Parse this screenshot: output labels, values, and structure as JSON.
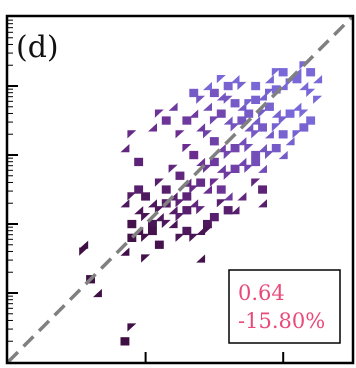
{
  "chart_data": {
    "type": "heatmap",
    "panel_label": "(d)",
    "title": "",
    "xlabel": "",
    "ylabel": "",
    "xlim": [
      0,
      1
    ],
    "ylim": [
      0,
      1
    ],
    "diagonal": {
      "style": "dashed",
      "color": "#808080",
      "from": [
        0,
        0
      ],
      "to": [
        1,
        1
      ]
    },
    "annotation": {
      "lines": [
        "0.64",
        "-15.80%"
      ],
      "color": "#e84a7a",
      "placement": "bottom-right"
    },
    "colors": {
      "low": "#3a0a3a",
      "mid": "#6b2d8f",
      "high": "#7b6fe0",
      "axis": "#000000"
    },
    "cells": [
      [
        0.6,
        0.78,
        0.8
      ],
      [
        0.62,
        0.77,
        0.8
      ],
      [
        0.64,
        0.76,
        0.8
      ],
      [
        0.66,
        0.75,
        0.85
      ],
      [
        0.68,
        0.74,
        0.85
      ],
      [
        0.7,
        0.75,
        0.9
      ],
      [
        0.72,
        0.76,
        0.9
      ],
      [
        0.74,
        0.77,
        0.9
      ],
      [
        0.76,
        0.78,
        0.9
      ],
      [
        0.78,
        0.79,
        0.95
      ],
      [
        0.8,
        0.8,
        0.95
      ],
      [
        0.82,
        0.81,
        0.95
      ],
      [
        0.84,
        0.82,
        0.95
      ],
      [
        0.86,
        0.8,
        0.95
      ],
      [
        0.88,
        0.78,
        0.95
      ],
      [
        0.7,
        0.72,
        0.85
      ],
      [
        0.72,
        0.7,
        0.85
      ],
      [
        0.74,
        0.72,
        0.85
      ],
      [
        0.76,
        0.74,
        0.9
      ],
      [
        0.78,
        0.72,
        0.9
      ],
      [
        0.8,
        0.7,
        0.9
      ],
      [
        0.82,
        0.72,
        0.95
      ],
      [
        0.84,
        0.74,
        0.95
      ],
      [
        0.86,
        0.72,
        0.95
      ],
      [
        0.88,
        0.7,
        0.95
      ],
      [
        0.64,
        0.7,
        0.8
      ],
      [
        0.66,
        0.68,
        0.8
      ],
      [
        0.68,
        0.7,
        0.8
      ],
      [
        0.7,
        0.68,
        0.8
      ],
      [
        0.72,
        0.66,
        0.85
      ],
      [
        0.74,
        0.68,
        0.85
      ],
      [
        0.76,
        0.66,
        0.85
      ],
      [
        0.78,
        0.68,
        0.9
      ],
      [
        0.8,
        0.66,
        0.9
      ],
      [
        0.82,
        0.64,
        0.9
      ],
      [
        0.84,
        0.66,
        0.9
      ],
      [
        0.86,
        0.68,
        0.9
      ],
      [
        0.56,
        0.68,
        0.6
      ],
      [
        0.58,
        0.66,
        0.65
      ],
      [
        0.6,
        0.64,
        0.65
      ],
      [
        0.62,
        0.62,
        0.65
      ],
      [
        0.64,
        0.6,
        0.7
      ],
      [
        0.66,
        0.62,
        0.7
      ],
      [
        0.68,
        0.64,
        0.75
      ],
      [
        0.7,
        0.62,
        0.75
      ],
      [
        0.72,
        0.6,
        0.75
      ],
      [
        0.74,
        0.62,
        0.8
      ],
      [
        0.76,
        0.6,
        0.8
      ],
      [
        0.78,
        0.62,
        0.85
      ],
      [
        0.8,
        0.6,
        0.85
      ],
      [
        0.52,
        0.62,
        0.5
      ],
      [
        0.54,
        0.6,
        0.5
      ],
      [
        0.56,
        0.58,
        0.55
      ],
      [
        0.58,
        0.56,
        0.55
      ],
      [
        0.6,
        0.58,
        0.6
      ],
      [
        0.62,
        0.56,
        0.6
      ],
      [
        0.64,
        0.54,
        0.6
      ],
      [
        0.66,
        0.56,
        0.65
      ],
      [
        0.68,
        0.58,
        0.7
      ],
      [
        0.7,
        0.56,
        0.7
      ],
      [
        0.72,
        0.58,
        0.75
      ],
      [
        0.74,
        0.56,
        0.75
      ],
      [
        0.48,
        0.56,
        0.4
      ],
      [
        0.5,
        0.54,
        0.4
      ],
      [
        0.52,
        0.52,
        0.4
      ],
      [
        0.54,
        0.5,
        0.45
      ],
      [
        0.56,
        0.52,
        0.45
      ],
      [
        0.58,
        0.5,
        0.5
      ],
      [
        0.6,
        0.52,
        0.5
      ],
      [
        0.62,
        0.5,
        0.55
      ],
      [
        0.64,
        0.48,
        0.6
      ],
      [
        0.44,
        0.52,
        0.3
      ],
      [
        0.46,
        0.5,
        0.3
      ],
      [
        0.48,
        0.48,
        0.3
      ],
      [
        0.5,
        0.46,
        0.35
      ],
      [
        0.52,
        0.48,
        0.35
      ],
      [
        0.54,
        0.46,
        0.4
      ],
      [
        0.56,
        0.44,
        0.4
      ],
      [
        0.4,
        0.48,
        0.2
      ],
      [
        0.42,
        0.46,
        0.2
      ],
      [
        0.44,
        0.44,
        0.2
      ],
      [
        0.46,
        0.46,
        0.25
      ],
      [
        0.48,
        0.44,
        0.25
      ],
      [
        0.5,
        0.42,
        0.3
      ],
      [
        0.52,
        0.44,
        0.3
      ],
      [
        0.38,
        0.44,
        0.15
      ],
      [
        0.4,
        0.42,
        0.15
      ],
      [
        0.42,
        0.4,
        0.15
      ],
      [
        0.44,
        0.42,
        0.2
      ],
      [
        0.46,
        0.4,
        0.2
      ],
      [
        0.36,
        0.4,
        0.1
      ],
      [
        0.38,
        0.38,
        0.1
      ],
      [
        0.4,
        0.36,
        0.1
      ],
      [
        0.42,
        0.38,
        0.12
      ],
      [
        0.34,
        0.46,
        0.2
      ],
      [
        0.36,
        0.48,
        0.25
      ],
      [
        0.38,
        0.5,
        0.3
      ],
      [
        0.42,
        0.68,
        0.5
      ],
      [
        0.44,
        0.72,
        0.55
      ],
      [
        0.46,
        0.7,
        0.55
      ],
      [
        0.48,
        0.74,
        0.6
      ],
      [
        0.5,
        0.66,
        0.5
      ],
      [
        0.52,
        0.7,
        0.6
      ],
      [
        0.54,
        0.72,
        0.6
      ],
      [
        0.6,
        0.7,
        0.7
      ],
      [
        0.62,
        0.72,
        0.7
      ],
      [
        0.58,
        0.74,
        0.75
      ],
      [
        0.56,
        0.76,
        0.8
      ],
      [
        0.54,
        0.78,
        0.85
      ],
      [
        0.58,
        0.8,
        0.95
      ],
      [
        0.62,
        0.82,
        0.95
      ],
      [
        0.64,
        0.8,
        0.9
      ],
      [
        0.66,
        0.82,
        0.95
      ],
      [
        0.68,
        0.8,
        0.9
      ],
      [
        0.72,
        0.8,
        0.95
      ],
      [
        0.76,
        0.82,
        0.95
      ],
      [
        0.78,
        0.84,
        0.95
      ],
      [
        0.8,
        0.84,
        0.95
      ],
      [
        0.84,
        0.84,
        0.95
      ],
      [
        0.86,
        0.86,
        0.95
      ],
      [
        0.88,
        0.84,
        0.95
      ],
      [
        0.9,
        0.82,
        0.95
      ],
      [
        0.9,
        0.76,
        0.95
      ],
      [
        0.58,
        0.4,
        0.2
      ],
      [
        0.56,
        0.38,
        0.15
      ],
      [
        0.54,
        0.36,
        0.15
      ],
      [
        0.6,
        0.42,
        0.3
      ],
      [
        0.34,
        0.62,
        0.4
      ],
      [
        0.36,
        0.66,
        0.45
      ],
      [
        0.38,
        0.58,
        0.35
      ],
      [
        0.48,
        0.4,
        0.15
      ],
      [
        0.5,
        0.36,
        0.15
      ],
      [
        0.52,
        0.38,
        0.2
      ],
      [
        0.56,
        0.3,
        0.1
      ],
      [
        0.58,
        0.38,
        0.15
      ],
      [
        0.74,
        0.5,
        0.35
      ],
      [
        0.66,
        0.44,
        0.3
      ],
      [
        0.62,
        0.46,
        0.3
      ],
      [
        0.64,
        0.44,
        0.3
      ],
      [
        0.68,
        0.48,
        0.4
      ],
      [
        0.72,
        0.52,
        0.4
      ],
      [
        0.36,
        0.36,
        0.08
      ],
      [
        0.34,
        0.32,
        0.08
      ],
      [
        0.22,
        0.32,
        0.05
      ],
      [
        0.24,
        0.24,
        0.05
      ],
      [
        0.26,
        0.2,
        0.05
      ],
      [
        0.36,
        0.1,
        0.05
      ],
      [
        0.34,
        0.06,
        0.05
      ],
      [
        0.22,
        0.34,
        0.05
      ],
      [
        0.4,
        0.3,
        0.1
      ],
      [
        0.44,
        0.34,
        0.12
      ],
      [
        0.74,
        0.46,
        0.3
      ]
    ]
  }
}
